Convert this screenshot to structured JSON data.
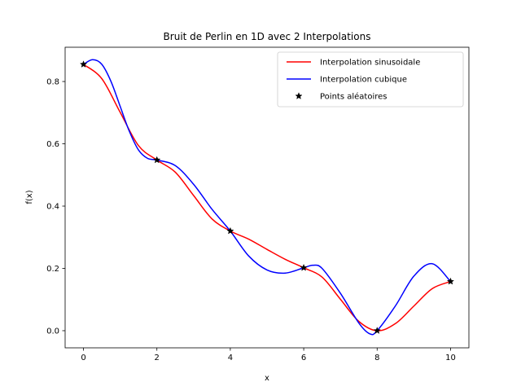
{
  "chart_data": {
    "type": "line",
    "title": "Bruit de Perlin en 1D avec 2 Interpolations",
    "xlabel": "x",
    "ylabel": "f(x)",
    "xlim": [
      -0.5,
      10.5
    ],
    "ylim": [
      -0.055,
      0.91
    ],
    "xticks": [
      0,
      2,
      4,
      6,
      8,
      10
    ],
    "yticks": [
      0.0,
      0.2,
      0.4,
      0.6,
      0.8
    ],
    "xtick_labels": [
      "0",
      "2",
      "4",
      "6",
      "8",
      "10"
    ],
    "ytick_labels": [
      "0.0",
      "0.2",
      "0.4",
      "0.6",
      "0.8"
    ],
    "grid": false,
    "legend_position": "top-right",
    "series": [
      {
        "name": "Interpolation sinusoidale",
        "color": "#ff0000",
        "marker": "none",
        "x": [
          0,
          0.5,
          1,
          1.5,
          2,
          2.5,
          3,
          3.5,
          4,
          4.5,
          5,
          5.5,
          6,
          6.5,
          7,
          7.5,
          8,
          8.5,
          9,
          9.5,
          10
        ],
        "y": [
          0.855,
          0.809,
          0.701,
          0.594,
          0.548,
          0.509,
          0.434,
          0.359,
          0.32,
          0.294,
          0.261,
          0.229,
          0.202,
          0.172,
          0.101,
          0.03,
          0.0,
          0.023,
          0.079,
          0.135,
          0.158
        ]
      },
      {
        "name": "Interpolation cubique",
        "color": "#0000ff",
        "marker": "none",
        "x": [
          0,
          0.25,
          0.5,
          0.75,
          1,
          1.25,
          1.5,
          1.75,
          2,
          2.5,
          3,
          3.5,
          4,
          4.5,
          5,
          5.5,
          6,
          6.25,
          6.5,
          7,
          7.5,
          7.8,
          8,
          8.5,
          9,
          9.5,
          10
        ],
        "y": [
          0.855,
          0.87,
          0.855,
          0.8,
          0.72,
          0.64,
          0.58,
          0.553,
          0.548,
          0.53,
          0.47,
          0.39,
          0.32,
          0.24,
          0.195,
          0.185,
          0.202,
          0.21,
          0.2,
          0.12,
          0.025,
          -0.01,
          0.0,
          0.08,
          0.175,
          0.215,
          0.158
        ]
      },
      {
        "name": "Points aléatoires",
        "color": "#000000",
        "marker": "star",
        "line": "none",
        "x": [
          0,
          2,
          4,
          6,
          8,
          10
        ],
        "y": [
          0.855,
          0.548,
          0.32,
          0.202,
          0.0,
          0.158
        ]
      }
    ]
  }
}
